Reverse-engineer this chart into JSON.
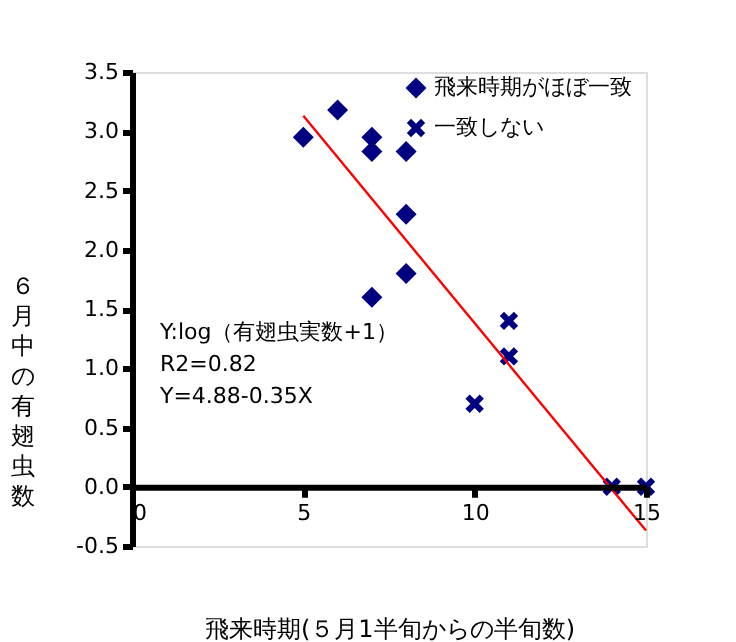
{
  "chart_data": {
    "type": "scatter",
    "xlabel": "飛来時期(５月1半旬からの半旬数)",
    "ylabel": "６月中の有翅虫数",
    "xlim": [
      0,
      15
    ],
    "xticks": [
      0,
      5,
      10,
      15
    ],
    "ylim": [
      -0.5,
      3.5
    ],
    "yticks": [
      {
        "value": -0.5,
        "label": "-0.5"
      },
      {
        "value": 0,
        "label": "0.0"
      },
      {
        "value": 0.5,
        "label": "0.5"
      },
      {
        "value": 1,
        "label": "1.0"
      },
      {
        "value": 1.5,
        "label": "1.5"
      },
      {
        "value": 2,
        "label": "2.0"
      },
      {
        "value": 2.5,
        "label": "2.5"
      },
      {
        "value": 3,
        "label": "3.0"
      },
      {
        "value": 3.5,
        "label": "3.5"
      }
    ],
    "grid": false,
    "legend": "top right",
    "annotations": [
      "Y:log（有翅虫実数+1）",
      "R2=0.82",
      "Y=4.88-0.35X"
    ],
    "series": [
      {
        "name": "飛来時期がほぼ一致",
        "color": "#000080",
        "marker": "diamond",
        "x": [
          5,
          6,
          7,
          7,
          7,
          8,
          8,
          8
        ],
        "values": [
          2.95,
          3.18,
          2.95,
          2.83,
          1.6,
          2.83,
          2.3,
          1.8
        ]
      },
      {
        "name": "一致しない",
        "color": "#000080",
        "marker": "cross",
        "x": [
          10,
          11,
          11,
          14,
          15
        ],
        "values": [
          0.7,
          1.4,
          1.1,
          0,
          0
        ]
      },
      {
        "type": "line",
        "color": "#ff0000",
        "marker": "none",
        "x": [
          5,
          15
        ],
        "values": [
          3.13,
          -0.37
        ]
      }
    ]
  }
}
